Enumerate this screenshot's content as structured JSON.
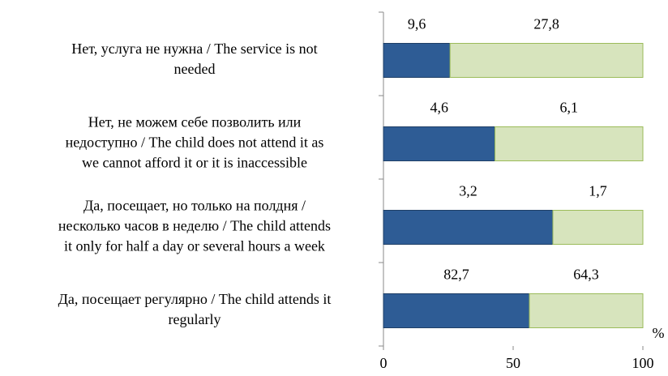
{
  "chart_data": {
    "type": "bar",
    "orientation": "horizontal",
    "stack": "percent",
    "categories": [
      [
        "Нет, услуга не нужна / The service is not",
        "needed"
      ],
      [
        "Нет, не можем себе позволить или",
        "недоступно / The child does not attend it as",
        "we cannot afford it or it is inaccessible"
      ],
      [
        "Да, посещает, но только на полдня /",
        "несколько часов в неделю / The child attends",
        "it only for half a day or several hours a week"
      ],
      [
        "Да, посещает регулярно / The child attends it",
        "regularly"
      ]
    ],
    "series": [
      {
        "color": "#2e5c95",
        "values": [
          9.6,
          4.6,
          3.2,
          82.7
        ],
        "value_labels": [
          "9,6",
          "4,6",
          "3,2",
          "82,7"
        ]
      },
      {
        "color": "#d7e4bd",
        "values": [
          27.8,
          6.1,
          1.7,
          64.3
        ],
        "value_labels": [
          "27,8",
          "6,1",
          "1,7",
          "64,3"
        ]
      }
    ],
    "xlim": [
      0,
      100
    ],
    "xticks": [
      0,
      50,
      100
    ],
    "xlabel": "%"
  }
}
